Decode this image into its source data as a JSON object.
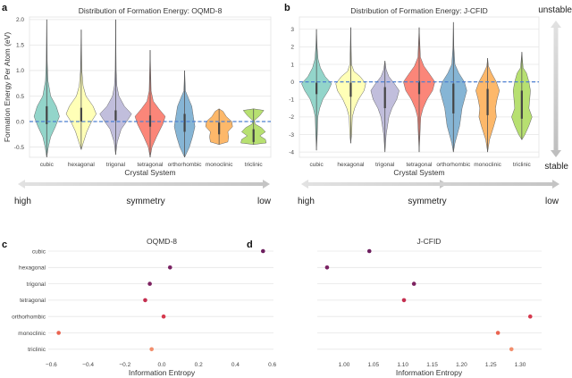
{
  "labels": {
    "panel_a": "a",
    "panel_b": "b",
    "panel_c": "c",
    "panel_d": "d",
    "symmetry_high": "high",
    "symmetry_mid": "symmetry",
    "symmetry_low": "low",
    "stability_top": "unstable",
    "stability_bottom": "stable"
  },
  "colors": {
    "violins": [
      "#8dd3c7",
      "#ffffb3",
      "#bebada",
      "#fb8072",
      "#80b1d3",
      "#fdb462",
      "#b3de69"
    ],
    "dots": [
      "#6d1f5f",
      "#7a2263",
      "#7d2260",
      "#c42e4f",
      "#d63a4e",
      "#ea6450",
      "#f28e6c"
    ],
    "zero_line": "#4c7fd1",
    "grid": "#e6e6e6",
    "arrow": "#cccccc"
  },
  "chart_data": [
    {
      "id": "a",
      "type": "violin",
      "title": "Distribution of Formation Energy: OQMD-8",
      "xlabel": "Crystal System",
      "ylabel": "Formation Energy Per Atom (eV)",
      "categories": [
        "cubic",
        "hexagonal",
        "trigonal",
        "tetragonal",
        "orthorhombic",
        "monoclinic",
        "triclinic"
      ],
      "ylim": [
        -0.7,
        2.05
      ],
      "yticks": [
        -0.5,
        0.0,
        0.5,
        1.0,
        1.5,
        2.0
      ],
      "ytick_labels": [
        "-0.5",
        "0.0",
        "0.5",
        "1.0",
        "1.5",
        "2.0"
      ],
      "reference_line": 0.0,
      "grid": true,
      "violins": [
        {
          "min": -0.7,
          "max": 2.0,
          "q1": -0.05,
          "q3": 0.3,
          "profile": [
            [
              -0.7,
              0
            ],
            [
              -0.5,
              0.1
            ],
            [
              -0.3,
              0.25
            ],
            [
              -0.1,
              0.55
            ],
            [
              0.1,
              0.8
            ],
            [
              0.3,
              0.6
            ],
            [
              0.5,
              0.25
            ],
            [
              0.8,
              0.08
            ],
            [
              1.2,
              0.03
            ],
            [
              2.0,
              0
            ]
          ]
        },
        {
          "min": -0.55,
          "max": 1.8,
          "q1": 0.0,
          "q3": 0.27,
          "profile": [
            [
              -0.55,
              0
            ],
            [
              -0.45,
              0.1
            ],
            [
              -0.2,
              0.35
            ],
            [
              0.0,
              0.65
            ],
            [
              0.15,
              0.95
            ],
            [
              0.3,
              0.75
            ],
            [
              0.5,
              0.3
            ],
            [
              0.7,
              0.12
            ],
            [
              1.0,
              0.04
            ],
            [
              1.8,
              0
            ]
          ]
        },
        {
          "min": -0.65,
          "max": 2.0,
          "q1": 0.02,
          "q3": 0.22,
          "profile": [
            [
              -0.65,
              0
            ],
            [
              -0.4,
              0.1
            ],
            [
              -0.15,
              0.35
            ],
            [
              0.05,
              0.8
            ],
            [
              0.15,
              1.0
            ],
            [
              0.3,
              0.55
            ],
            [
              0.5,
              0.2
            ],
            [
              0.7,
              0.08
            ],
            [
              1.0,
              0.03
            ],
            [
              2.0,
              0
            ]
          ]
        },
        {
          "min": -0.7,
          "max": 1.4,
          "q1": -0.1,
          "q3": 0.12,
          "profile": [
            [
              -0.7,
              0
            ],
            [
              -0.5,
              0.12
            ],
            [
              -0.3,
              0.4
            ],
            [
              -0.05,
              0.8
            ],
            [
              0.1,
              0.95
            ],
            [
              0.25,
              0.55
            ],
            [
              0.4,
              0.2
            ],
            [
              0.6,
              0.06
            ],
            [
              1.4,
              0
            ]
          ]
        },
        {
          "min": -0.7,
          "max": 1.0,
          "q1": -0.2,
          "q3": 0.15,
          "profile": [
            [
              -0.7,
              0
            ],
            [
              -0.5,
              0.3
            ],
            [
              -0.3,
              0.5
            ],
            [
              -0.1,
              0.65
            ],
            [
              0.1,
              0.55
            ],
            [
              0.3,
              0.45
            ],
            [
              0.45,
              0.25
            ],
            [
              0.6,
              0.05
            ],
            [
              1.0,
              0
            ]
          ]
        },
        {
          "min": -0.45,
          "max": 0.25,
          "q1": -0.25,
          "q3": -0.02,
          "profile": [
            [
              -0.45,
              0
            ],
            [
              -0.4,
              0.55
            ],
            [
              -0.3,
              0.6
            ],
            [
              -0.2,
              0.55
            ],
            [
              -0.1,
              0.85
            ],
            [
              0.0,
              0.8
            ],
            [
              0.1,
              0.45
            ],
            [
              0.2,
              0.25
            ],
            [
              0.25,
              0
            ]
          ]
        },
        {
          "min": -0.45,
          "max": 0.25,
          "q1": -0.4,
          "q3": -0.15,
          "profile": [
            [
              -0.45,
              0
            ],
            [
              -0.42,
              0.8
            ],
            [
              -0.35,
              0.75
            ],
            [
              -0.28,
              0.4
            ],
            [
              -0.2,
              0.75
            ],
            [
              -0.12,
              0.5
            ],
            [
              -0.05,
              0.1
            ],
            [
              0.02,
              0.05
            ],
            [
              0.12,
              0.4
            ],
            [
              0.22,
              0.65
            ],
            [
              0.25,
              0
            ]
          ]
        }
      ]
    },
    {
      "id": "b",
      "type": "violin",
      "title": "Distribution of Formation Energy: J-CFID",
      "xlabel": "Crystal System",
      "ylabel": "",
      "categories": [
        "cubic",
        "hexagonal",
        "trigonal",
        "tetragonal",
        "orthorhombic",
        "monoclinic",
        "triclinic"
      ],
      "ylim": [
        -4.3,
        3.7
      ],
      "yticks": [
        -4,
        -3,
        -2,
        -1,
        0,
        1,
        2,
        3
      ],
      "ytick_labels": [
        "-4",
        "-3",
        "-2",
        "-1",
        "0",
        "1",
        "2",
        "3"
      ],
      "reference_line": 0.0,
      "grid": true,
      "violins": [
        {
          "min": -3.9,
          "max": 3.0,
          "q1": -0.7,
          "q3": -0.05,
          "profile": [
            [
              -3.9,
              0
            ],
            [
              -3.0,
              0.05
            ],
            [
              -2.0,
              0.08
            ],
            [
              -1.5,
              0.2
            ],
            [
              -1.0,
              0.4
            ],
            [
              -0.5,
              0.75
            ],
            [
              -0.1,
              0.95
            ],
            [
              0.3,
              0.55
            ],
            [
              0.8,
              0.25
            ],
            [
              1.3,
              0.1
            ],
            [
              2.0,
              0.04
            ],
            [
              3.0,
              0
            ]
          ]
        },
        {
          "min": -3.5,
          "max": 3.1,
          "q1": -0.85,
          "q3": -0.05,
          "profile": [
            [
              -3.5,
              0
            ],
            [
              -3.0,
              0.06
            ],
            [
              -2.0,
              0.1
            ],
            [
              -1.5,
              0.25
            ],
            [
              -1.0,
              0.5
            ],
            [
              -0.5,
              0.85
            ],
            [
              -0.1,
              0.95
            ],
            [
              0.3,
              0.6
            ],
            [
              0.6,
              0.2
            ],
            [
              1.0,
              0.05
            ],
            [
              3.1,
              0
            ]
          ]
        },
        {
          "min": -4.0,
          "max": 1.2,
          "q1": -1.5,
          "q3": -0.3,
          "profile": [
            [
              -4.0,
              0
            ],
            [
              -3.0,
              0.08
            ],
            [
              -2.0,
              0.25
            ],
            [
              -1.5,
              0.45
            ],
            [
              -1.0,
              0.75
            ],
            [
              -0.5,
              0.9
            ],
            [
              -0.1,
              0.6
            ],
            [
              0.3,
              0.25
            ],
            [
              0.7,
              0.08
            ],
            [
              1.2,
              0
            ]
          ]
        },
        {
          "min": -4.0,
          "max": 3.1,
          "q1": -0.7,
          "q3": 0.05,
          "profile": [
            [
              -4.0,
              0
            ],
            [
              -3.0,
              0.05
            ],
            [
              -2.0,
              0.1
            ],
            [
              -1.5,
              0.25
            ],
            [
              -1.0,
              0.5
            ],
            [
              -0.5,
              0.85
            ],
            [
              0.0,
              1.0
            ],
            [
              0.4,
              0.7
            ],
            [
              0.9,
              0.3
            ],
            [
              1.4,
              0.08
            ],
            [
              3.1,
              0
            ]
          ]
        },
        {
          "min": -4.0,
          "max": 3.4,
          "q1": -1.8,
          "q3": -0.1,
          "profile": [
            [
              -4.0,
              0
            ],
            [
              -3.5,
              0.1
            ],
            [
              -2.5,
              0.4
            ],
            [
              -1.5,
              0.55
            ],
            [
              -0.5,
              0.85
            ],
            [
              0.0,
              0.7
            ],
            [
              0.5,
              0.35
            ],
            [
              1.0,
              0.1
            ],
            [
              2.0,
              0.03
            ],
            [
              3.4,
              0
            ]
          ]
        },
        {
          "min": -4.0,
          "max": 1.35,
          "q1": -1.9,
          "q3": -0.4,
          "profile": [
            [
              -4.0,
              0
            ],
            [
              -3.3,
              0.12
            ],
            [
              -2.5,
              0.4
            ],
            [
              -2.0,
              0.55
            ],
            [
              -1.5,
              0.5
            ],
            [
              -1.0,
              0.6
            ],
            [
              -0.5,
              0.75
            ],
            [
              0.0,
              0.55
            ],
            [
              0.5,
              0.25
            ],
            [
              0.9,
              0.05
            ],
            [
              1.35,
              0
            ]
          ]
        },
        {
          "min": -3.3,
          "max": 1.7,
          "q1": -2.1,
          "q3": -0.5,
          "profile": [
            [
              -3.3,
              0
            ],
            [
              -3.0,
              0.2
            ],
            [
              -2.5,
              0.45
            ],
            [
              -2.0,
              0.65
            ],
            [
              -1.5,
              0.45
            ],
            [
              -1.0,
              0.5
            ],
            [
              -0.5,
              0.55
            ],
            [
              0.0,
              0.45
            ],
            [
              0.5,
              0.3
            ],
            [
              0.8,
              0.08
            ],
            [
              1.7,
              0
            ]
          ]
        }
      ]
    },
    {
      "id": "c",
      "type": "scatter",
      "title": "OQMD-8",
      "xlabel": "Information Entropy",
      "ylabel": "",
      "categories": [
        "cubic",
        "hexagonal",
        "trigonal",
        "tetragonal",
        "orthorhombic",
        "monoclinic",
        "triclinic"
      ],
      "values": [
        0.55,
        0.045,
        -0.065,
        -0.09,
        0.01,
        -0.56,
        -0.055
      ],
      "xlim": [
        -0.62,
        0.62
      ],
      "xticks": [
        -0.6,
        -0.4,
        -0.2,
        0.0,
        0.2,
        0.4,
        0.6
      ],
      "xtick_labels": [
        "−0.6",
        "−0.4",
        "−0.2",
        "0.0",
        "0.2",
        "0.4",
        "0.6"
      ],
      "grid": true
    },
    {
      "id": "d",
      "type": "scatter",
      "title": "J-CFID",
      "xlabel": "Information Entropy",
      "ylabel": "",
      "categories": [
        "cubic",
        "hexagonal",
        "trigonal",
        "tetragonal",
        "orthorhombic",
        "monoclinic",
        "triclinic"
      ],
      "values": [
        1.043,
        0.971,
        1.119,
        1.102,
        1.317,
        1.262,
        1.285
      ],
      "xlim": [
        0.955,
        1.335
      ],
      "xticks": [
        1.0,
        1.05,
        1.1,
        1.15,
        1.2,
        1.25,
        1.3
      ],
      "xtick_labels": [
        "1.00",
        "1.05",
        "1.10",
        "1.15",
        "1.20",
        "1.25",
        "1.30"
      ],
      "grid": true
    }
  ]
}
